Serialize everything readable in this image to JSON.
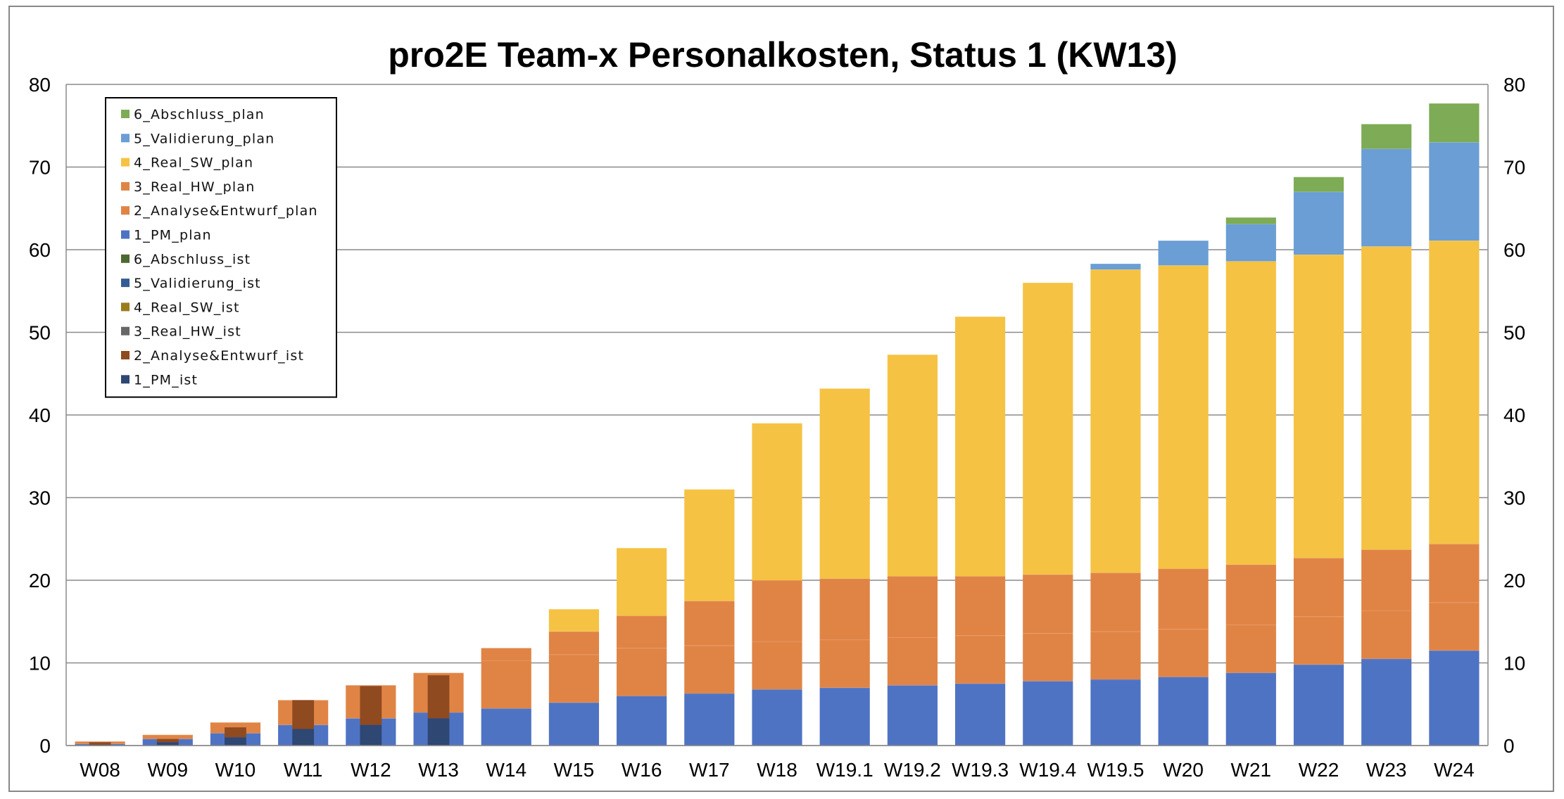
{
  "chart_data": {
    "type": "bar",
    "stacked": true,
    "overlay_groups": [
      "plan",
      "ist"
    ],
    "title": "pro2E Team-x Personalkosten, Status 1 (KW13)",
    "xlabel": "",
    "ylabel": "",
    "ylim": [
      0,
      80
    ],
    "yticks": [
      0,
      10,
      20,
      30,
      40,
      50,
      60,
      70,
      80
    ],
    "secondary_yaxis": true,
    "grid": true,
    "legend_position": "top-left",
    "categories": [
      "W08",
      "W09",
      "W10",
      "W11",
      "W12",
      "W13",
      "W14",
      "W15",
      "W16",
      "W17",
      "W18",
      "W19.1",
      "W19.2",
      "W19.3",
      "W19.4",
      "W19.5",
      "W20",
      "W21",
      "W22",
      "W23",
      "W24"
    ],
    "series": [
      {
        "name": "1_PM_plan",
        "group": "plan",
        "color": "#4f73c3",
        "values": [
          0.2,
          0.8,
          1.5,
          2.5,
          3.3,
          4.0,
          4.5,
          5.2,
          6.0,
          6.3,
          6.8,
          7.0,
          7.3,
          7.5,
          7.8,
          8.0,
          8.3,
          8.8,
          9.8,
          10.5,
          11.5
        ]
      },
      {
        "name": "2_Analyse&Entwurf_plan",
        "group": "plan",
        "color": "#e08445",
        "values": [
          0.3,
          0.5,
          1.3,
          3.0,
          4.0,
          4.8,
          5.8,
          5.8,
          5.8,
          5.8,
          5.8,
          5.8,
          5.8,
          5.8,
          5.8,
          5.8,
          5.8,
          5.8,
          5.8,
          5.8,
          5.8
        ]
      },
      {
        "name": "3_Real_HW_plan",
        "group": "plan",
        "color": "#e08445",
        "values": [
          0,
          0,
          0,
          0,
          0,
          0,
          1.5,
          2.8,
          3.9,
          5.4,
          7.4,
          7.4,
          7.4,
          7.2,
          7.1,
          7.1,
          7.3,
          7.3,
          7.1,
          7.4,
          7.1
        ]
      },
      {
        "name": "4_Real_SW_plan",
        "group": "plan",
        "color": "#f5c243",
        "values": [
          0,
          0,
          0,
          0,
          0,
          0,
          0,
          2.7,
          8.2,
          13.5,
          19.0,
          23.0,
          26.8,
          31.4,
          35.3,
          36.7,
          36.7,
          36.7,
          36.7,
          36.7,
          36.7
        ]
      },
      {
        "name": "5_Validierung_plan",
        "group": "plan",
        "color": "#6a9ed4",
        "values": [
          0,
          0,
          0,
          0,
          0,
          0,
          0,
          0,
          0,
          0,
          0,
          0,
          0,
          0,
          0,
          0.7,
          3.0,
          4.5,
          7.6,
          11.8,
          11.9
        ]
      },
      {
        "name": "6_Abschluss_plan",
        "group": "plan",
        "color": "#7eab55",
        "values": [
          0,
          0,
          0,
          0,
          0,
          0,
          0,
          0,
          0,
          0,
          0,
          0,
          0,
          0,
          0,
          0,
          0,
          0.8,
          1.8,
          3.0,
          4.7
        ]
      },
      {
        "name": "1_PM_ist",
        "group": "ist",
        "color": "#2e4773",
        "values": [
          0.1,
          0.4,
          1.0,
          2.0,
          2.5,
          3.3,
          0,
          0,
          0,
          0,
          0,
          0,
          0,
          0,
          0,
          0,
          0,
          0,
          0,
          0,
          0
        ]
      },
      {
        "name": "2_Analyse&Entwurf_ist",
        "group": "ist",
        "color": "#8f4a20",
        "values": [
          0.3,
          0.4,
          1.2,
          3.5,
          4.7,
          5.2,
          0,
          0,
          0,
          0,
          0,
          0,
          0,
          0,
          0,
          0,
          0,
          0,
          0,
          0,
          0
        ]
      },
      {
        "name": "3_Real_HW_ist",
        "group": "ist",
        "color": "#676767",
        "values": [
          0,
          0,
          0,
          0,
          0,
          0,
          0,
          0,
          0,
          0,
          0,
          0,
          0,
          0,
          0,
          0,
          0,
          0,
          0,
          0,
          0
        ]
      },
      {
        "name": "4_Real_SW_ist",
        "group": "ist",
        "color": "#9c7b1c",
        "values": [
          0,
          0,
          0,
          0,
          0,
          0,
          0,
          0,
          0,
          0,
          0,
          0,
          0,
          0,
          0,
          0,
          0,
          0,
          0,
          0,
          0
        ]
      },
      {
        "name": "5_Validierung_ist",
        "group": "ist",
        "color": "#345c94",
        "values": [
          0,
          0,
          0,
          0,
          0,
          0,
          0,
          0,
          0,
          0,
          0,
          0,
          0,
          0,
          0,
          0,
          0,
          0,
          0,
          0,
          0
        ]
      },
      {
        "name": "6_Abschluss_ist",
        "group": "ist",
        "color": "#4a6a32",
        "values": [
          0,
          0,
          0,
          0,
          0,
          0,
          0,
          0,
          0,
          0,
          0,
          0,
          0,
          0,
          0,
          0,
          0,
          0,
          0,
          0,
          0
        ]
      }
    ],
    "legend_order": [
      "6_Abschluss_plan",
      "5_Validierung_plan",
      "4_Real_SW_plan",
      "3_Real_HW_plan",
      "2_Analyse&Entwurf_plan",
      "1_PM_plan",
      "6_Abschluss_ist",
      "5_Validierung_ist",
      "4_Real_SW_ist",
      "3_Real_HW_ist",
      "2_Analyse&Entwurf_ist",
      "1_PM_ist"
    ]
  }
}
